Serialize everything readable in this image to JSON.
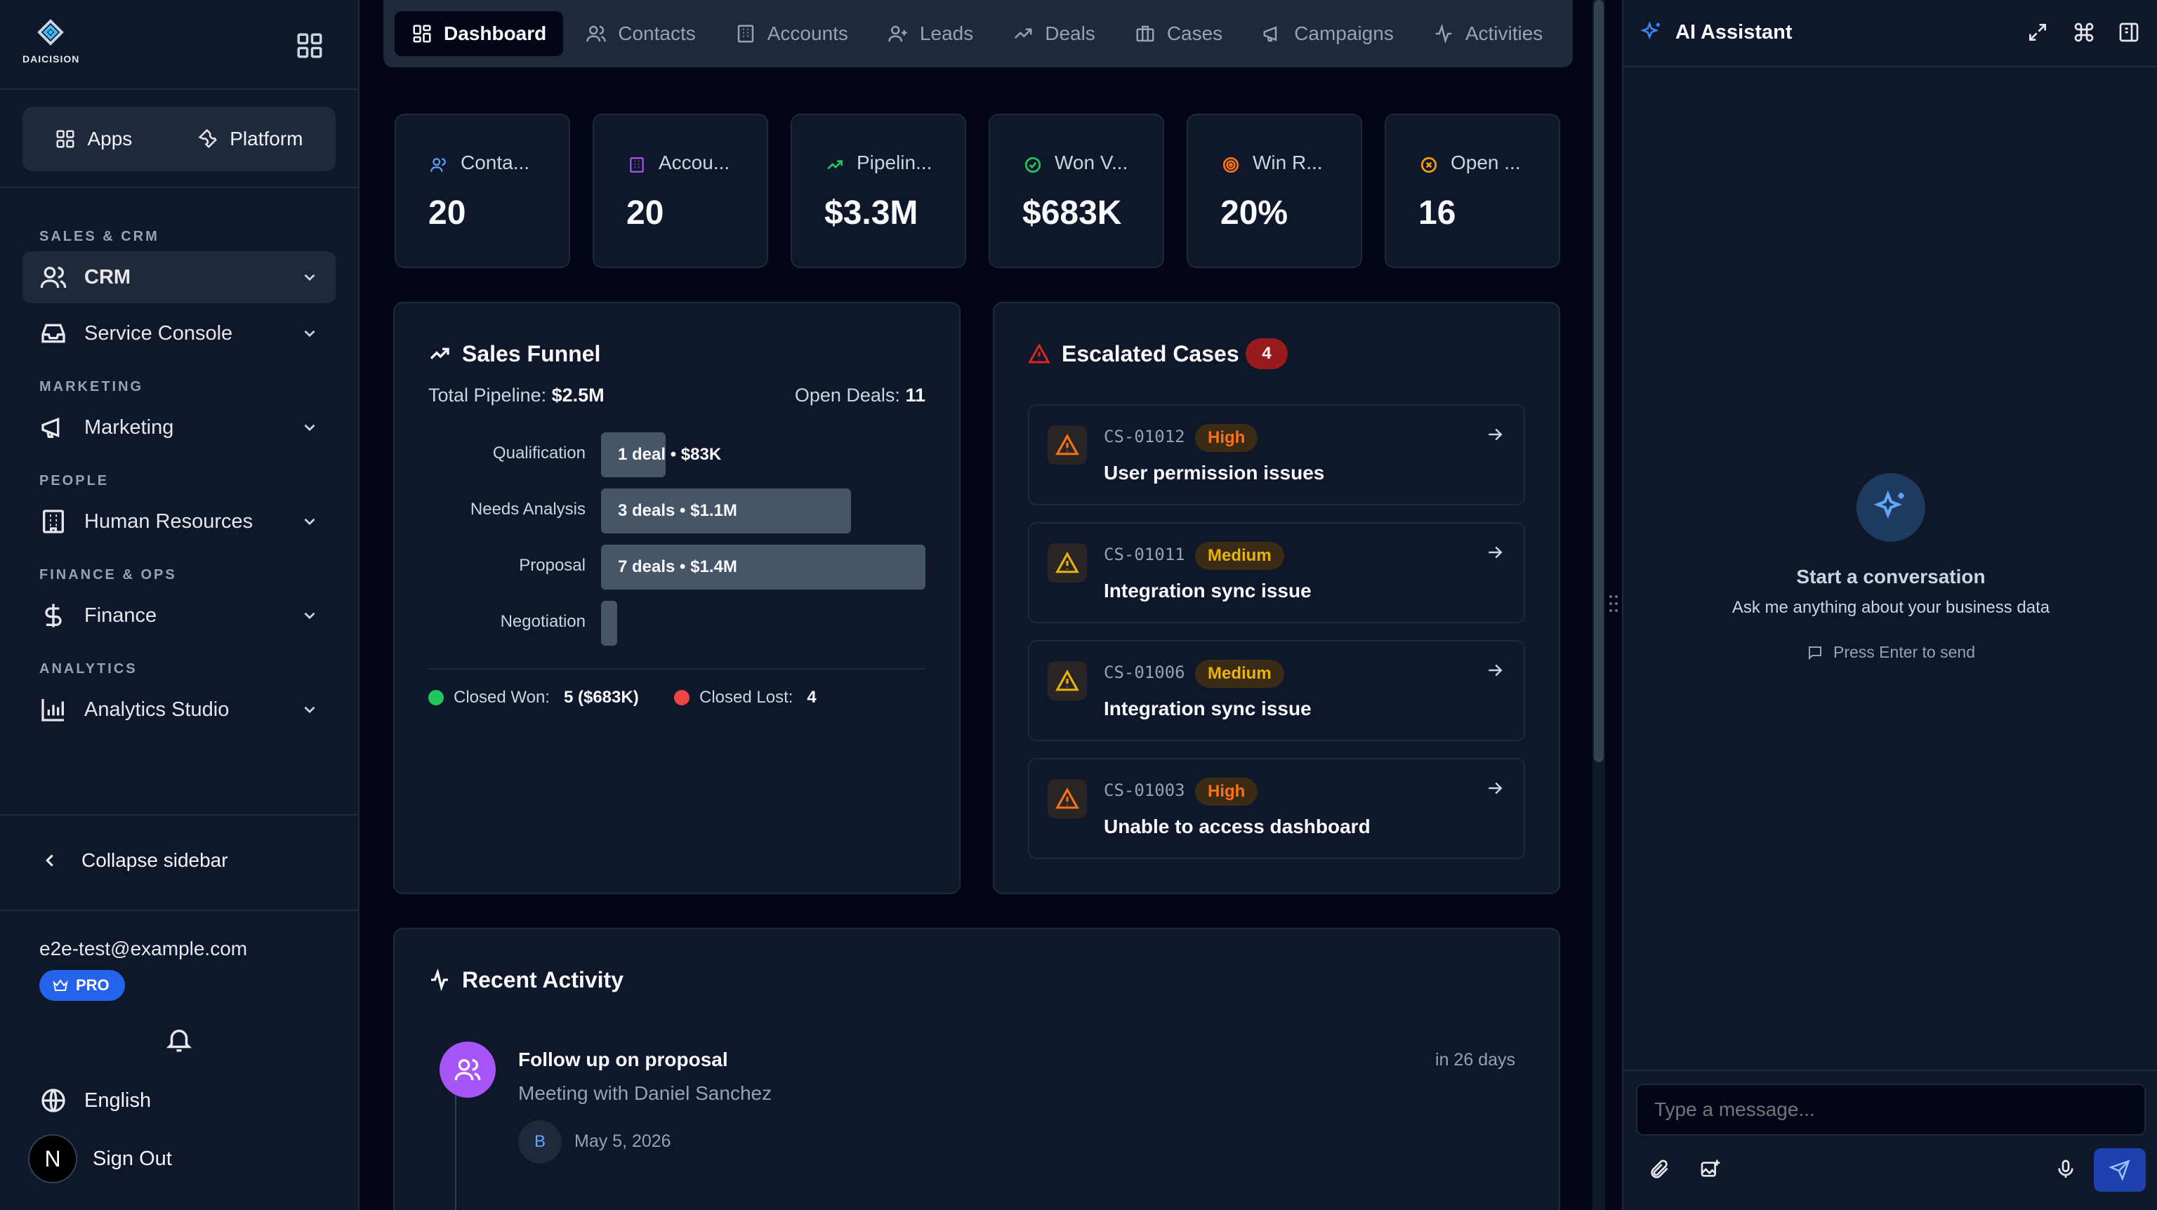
{
  "sidebar": {
    "logo_text": "DAICISION",
    "apps_label": "Apps",
    "platform_label": "Platform",
    "sections": {
      "sales": "SALES & CRM",
      "marketing": "MARKETING",
      "people": "PEOPLE",
      "finance": "FINANCE & OPS",
      "analytics": "ANALYTICS"
    },
    "items": {
      "crm": "CRM",
      "service": "Service Console",
      "marketing": "Marketing",
      "hr": "Human Resources",
      "finance": "Finance",
      "analytics": "Analytics Studio"
    },
    "collapse_label": "Collapse sidebar",
    "email": "e2e-test@example.com",
    "plan_badge": "PRO",
    "language": "English",
    "signout": "Sign Out",
    "avatar_letter": "N"
  },
  "tabs": [
    {
      "label": "Dashboard",
      "icon": "dashboard-icon"
    },
    {
      "label": "Contacts",
      "icon": "users-icon"
    },
    {
      "label": "Accounts",
      "icon": "building-icon"
    },
    {
      "label": "Leads",
      "icon": "user-plus-icon"
    },
    {
      "label": "Deals",
      "icon": "trending-icon"
    },
    {
      "label": "Cases",
      "icon": "briefcase-icon"
    },
    {
      "label": "Campaigns",
      "icon": "megaphone-icon"
    },
    {
      "label": "Activities",
      "icon": "activity-icon"
    }
  ],
  "stats": [
    {
      "label": "Conta...",
      "value": "20",
      "color": "#60a5fa"
    },
    {
      "label": "Accou...",
      "value": "20",
      "color": "#a855f7"
    },
    {
      "label": "Pipelin...",
      "value": "$3.3M",
      "color": "#22c55e"
    },
    {
      "label": "Won V...",
      "value": "$683K",
      "color": "#22c55e"
    },
    {
      "label": "Win R...",
      "value": "20%",
      "color": "#f97316"
    },
    {
      "label": "Open ...",
      "value": "16",
      "color": "#f59e0b"
    }
  ],
  "funnel": {
    "title": "Sales Funnel",
    "total_label": "Total Pipeline:",
    "total_value": "$2.5M",
    "open_label": "Open Deals:",
    "open_value": "11",
    "stages": [
      {
        "name": "Qualification",
        "text": "1 deal • $83K",
        "share": 0.2
      },
      {
        "name": "Needs Analysis",
        "text": "3 deals • $1.1M",
        "share": 0.77
      },
      {
        "name": "Proposal",
        "text": "7 deals • $1.4M",
        "share": 1.0
      },
      {
        "name": "Negotiation",
        "text": "",
        "share": 0.05
      }
    ],
    "closed_won_label": "Closed Won:",
    "closed_won_value": "5 ($683K)",
    "closed_lost_label": "Closed Lost:",
    "closed_lost_value": "4"
  },
  "cases": {
    "title": "Escalated Cases",
    "count": "4",
    "items": [
      {
        "id": "CS-01012",
        "priority": "High",
        "title": "User permission issues",
        "color": "#f97316"
      },
      {
        "id": "CS-01011",
        "priority": "Medium",
        "title": "Integration sync issue",
        "color": "#eab308"
      },
      {
        "id": "CS-01006",
        "priority": "Medium",
        "title": "Integration sync issue",
        "color": "#eab308"
      },
      {
        "id": "CS-01003",
        "priority": "High",
        "title": "Unable to access dashboard",
        "color": "#f97316"
      }
    ]
  },
  "activity": {
    "title": "Recent Activity",
    "items": [
      {
        "title": "Follow up on proposal",
        "subtitle": "Meeting with Daniel Sanchez",
        "when": "in 26 days",
        "badge": "B",
        "date": "May 5, 2026"
      }
    ]
  },
  "assistant": {
    "title": "AI Assistant",
    "empty_title": "Start a conversation",
    "empty_sub": "Ask me anything about your business data",
    "hint": "Press Enter to send",
    "input_placeholder": "Type a message..."
  }
}
